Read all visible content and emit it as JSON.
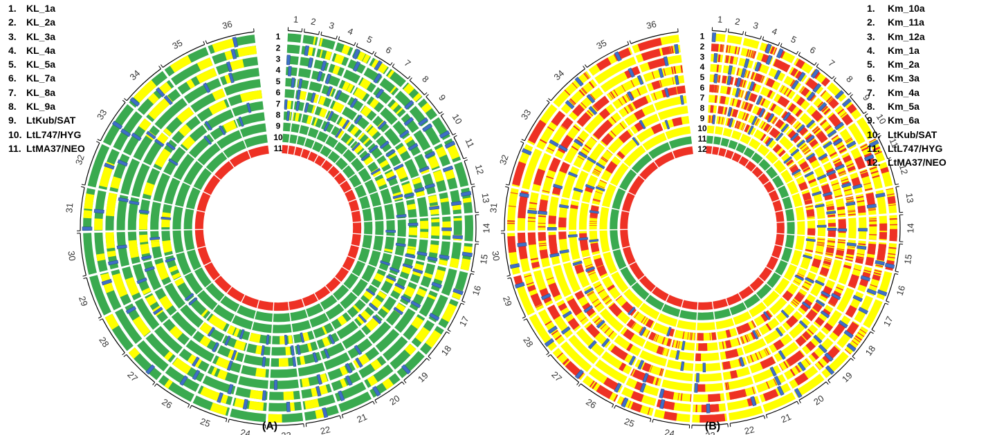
{
  "colors": {
    "yellow": "#FFFF00",
    "green": "#3AAA4F",
    "red": "#EE3124",
    "blue": "#3F6FC7",
    "gap": "#ffffff",
    "tick": "#000000"
  },
  "panels": [
    {
      "id": "A",
      "caption": "(A)",
      "chromosomes": [
        "1",
        "2",
        "3",
        "4",
        "5",
        "6",
        "7",
        "8",
        "9",
        "10",
        "11",
        "12",
        "13",
        "14",
        "15",
        "16",
        "17",
        "18",
        "19",
        "20",
        "21",
        "22",
        "23",
        "24",
        "25",
        "26",
        "27",
        "28",
        "29",
        "30",
        "31",
        "32",
        "33",
        "34",
        "35",
        "36"
      ],
      "track_labels": [
        "1",
        "2",
        "3",
        "4",
        "5",
        "6",
        "7",
        "8",
        "9",
        "10",
        "11"
      ],
      "legend": [
        {
          "num": "1.",
          "name": "KL_1a"
        },
        {
          "num": "2.",
          "name": "KL_2a"
        },
        {
          "num": "3.",
          "name": "KL_3a"
        },
        {
          "num": "4.",
          "name": "KL_4a"
        },
        {
          "num": "5.",
          "name": "KL_5a"
        },
        {
          "num": "6.",
          "name": "KL_7a"
        },
        {
          "num": "7.",
          "name": "KL_8a"
        },
        {
          "num": "8.",
          "name": "KL_9a"
        },
        {
          "num": "9.",
          "name": "LtKub/SAT"
        },
        {
          "num": "10.",
          "name": "LtL747/HYG"
        },
        {
          "num": "11.",
          "name": "LtMA37/NEO"
        }
      ]
    },
    {
      "id": "B",
      "caption": "(B)",
      "chromosomes": [
        "1",
        "2",
        "3",
        "4",
        "5",
        "6",
        "7",
        "8",
        "9",
        "10",
        "11",
        "12",
        "13",
        "14",
        "15",
        "16",
        "17",
        "18",
        "19",
        "20",
        "21",
        "22",
        "23",
        "24",
        "25",
        "26",
        "27",
        "28",
        "29",
        "30",
        "31",
        "32",
        "33",
        "34",
        "35",
        "36"
      ],
      "track_labels": [
        "1",
        "2",
        "3",
        "4",
        "5",
        "6",
        "7",
        "8",
        "9",
        "10",
        "11",
        "12"
      ],
      "legend": [
        {
          "num": "1.",
          "name": "Km_10a"
        },
        {
          "num": "2.",
          "name": "Km_11a"
        },
        {
          "num": "3.",
          "name": "Km_12a"
        },
        {
          "num": "4.",
          "name": "Km_1a"
        },
        {
          "num": "5.",
          "name": "Km_2a"
        },
        {
          "num": "6.",
          "name": "Km_3a"
        },
        {
          "num": "7.",
          "name": "Km_4a"
        },
        {
          "num": "8.",
          "name": "Km_5a"
        },
        {
          "num": "9.",
          "name": "Km_6a"
        },
        {
          "num": "10.",
          "name": "LtKub/SAT"
        },
        {
          "num": "11.",
          "name": "LtL747/HYG"
        },
        {
          "num": "12.",
          "name": "LtMA37/NEO"
        }
      ]
    }
  ]
}
